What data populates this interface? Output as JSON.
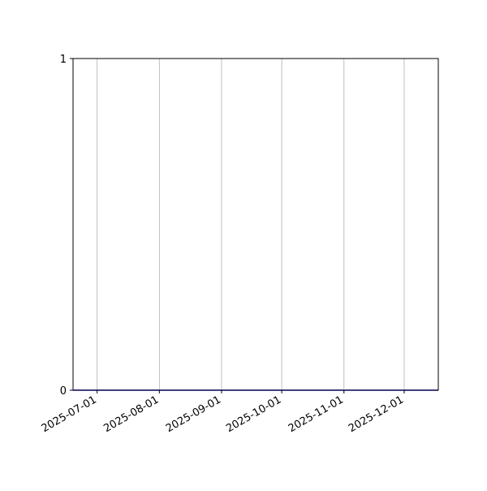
{
  "chart_data": {
    "type": "line",
    "title": "",
    "xlabel": "",
    "ylabel": "",
    "x_axis_type": "date",
    "xlim": [
      "2025-06-19",
      "2025-12-18"
    ],
    "ylim": [
      0,
      1
    ],
    "xticks": [
      "2025-07-01",
      "2025-08-01",
      "2025-09-01",
      "2025-10-01",
      "2025-11-01",
      "2025-12-01"
    ],
    "yticks": [
      0,
      1
    ],
    "grid": "x-major",
    "series": [
      {
        "color": "#0000ff",
        "x": [
          "2025-06-19",
          "2025-12-18"
        ],
        "y": [
          0,
          0
        ]
      }
    ],
    "colors": {
      "grid": "#b0b0b0",
      "axes": "#000000",
      "line": "#0000ff"
    }
  }
}
